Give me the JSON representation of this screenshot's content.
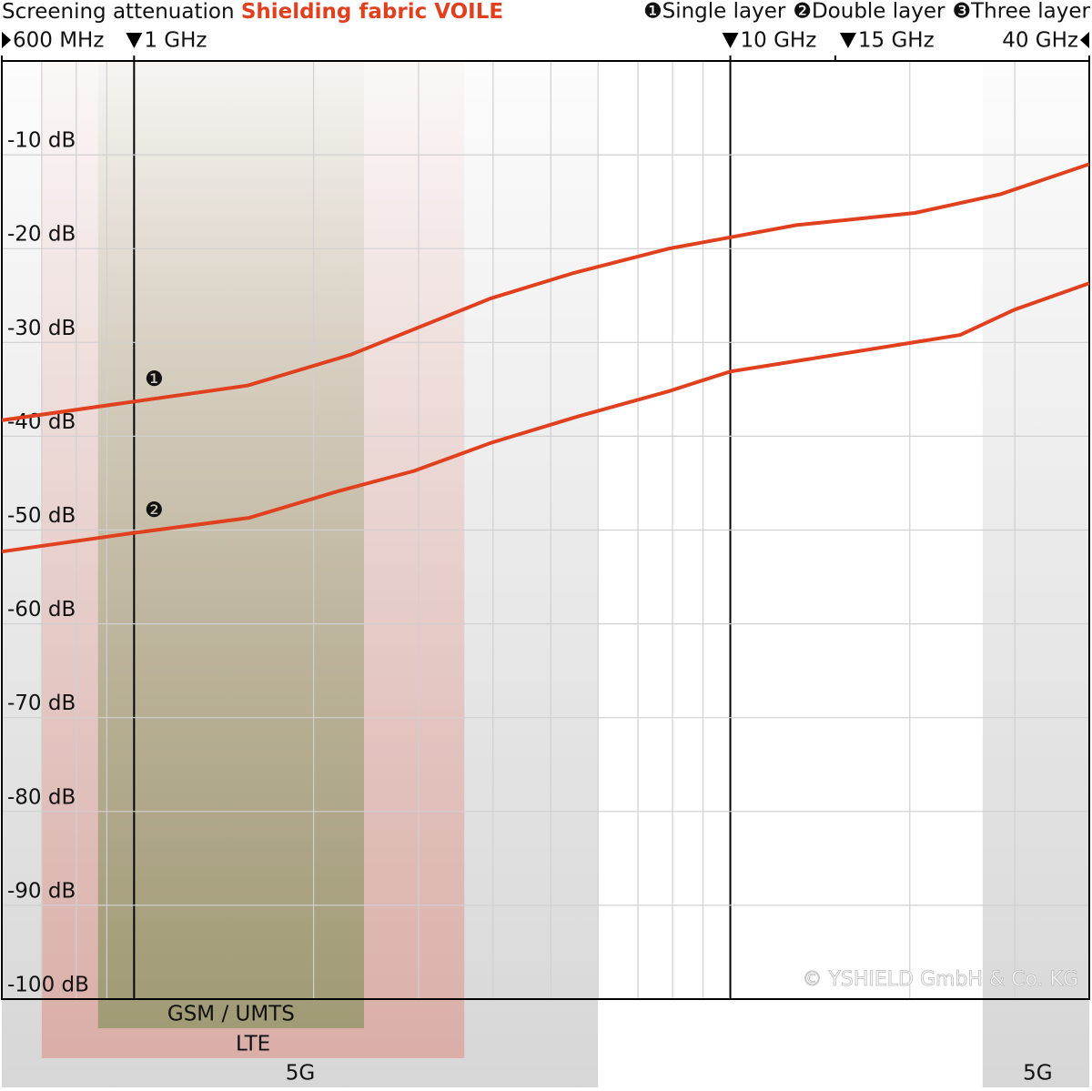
{
  "chart_data": {
    "type": "line",
    "title": "Screening attenuation",
    "subtitle": "Shielding fabric VOILE",
    "log_x": true,
    "xlim": [
      0.6,
      40
    ],
    "xticks": [
      {
        "value": 0.6,
        "label": "600 MHz"
      },
      {
        "value": 1,
        "label": "1 GHz"
      },
      {
        "value": 10,
        "label": "10 GHz"
      },
      {
        "value": 15,
        "label": "15 GHz"
      },
      {
        "value": 40,
        "label": "40 GHz"
      }
    ],
    "ylim": [
      -100,
      0
    ],
    "yticks": [
      {
        "value": -10,
        "label": "-10 dB"
      },
      {
        "value": -20,
        "label": "-20 dB"
      },
      {
        "value": -30,
        "label": "-30 dB"
      },
      {
        "value": -40,
        "label": "-40 dB"
      },
      {
        "value": -50,
        "label": "-50 dB"
      },
      {
        "value": -60,
        "label": "-60 dB"
      },
      {
        "value": -70,
        "label": "-70 dB"
      },
      {
        "value": -80,
        "label": "-80 dB"
      },
      {
        "value": -90,
        "label": "-90 dB"
      },
      {
        "value": -100,
        "label": "-100 dB"
      }
    ],
    "grid": true,
    "series": [
      {
        "name": "Single layer",
        "marker": "❶",
        "color": "#e0401e",
        "x": [
          0.6,
          1.0,
          1.55,
          2.31,
          3.97,
          5.46,
          7.89,
          10,
          12.9,
          20.4,
          28.4,
          40
        ],
        "values": [
          -38.3,
          -36.3,
          -34.6,
          -31.3,
          -25.3,
          -22.6,
          -20.0,
          -18.8,
          -17.5,
          -16.2,
          -14.2,
          -11.0
        ]
      },
      {
        "name": "Double layer",
        "marker": "❷",
        "color": "#e0401e",
        "x": [
          0.6,
          1.0,
          1.56,
          2.19,
          2.95,
          3.97,
          5.55,
          7.89,
          10,
          14.1,
          24.3,
          30.0,
          40
        ],
        "values": [
          -52.3,
          -50.3,
          -48.7,
          -45.9,
          -43.7,
          -40.7,
          -37.9,
          -35.2,
          -33.1,
          -31.6,
          -29.2,
          -26.5,
          -23.7
        ]
      },
      {
        "name": "Three layer",
        "marker": "❸",
        "color": "#e0401e",
        "x": [],
        "values": []
      }
    ],
    "bands": [
      {
        "label": "5G",
        "range": [
          0.6,
          6.0
        ],
        "color": "#9a9a9a"
      },
      {
        "label": "5G",
        "range": [
          26.5,
          40
        ],
        "color": "#9a9a9a"
      },
      {
        "label": "LTE",
        "range": [
          0.7,
          3.58
        ],
        "color": "#e07060"
      },
      {
        "label": "GSM / UMTS",
        "range": [
          0.87,
          2.43
        ],
        "color": "#6f8a4a"
      }
    ],
    "copyright": "© YSHIELD GmbH & Co. KG"
  }
}
